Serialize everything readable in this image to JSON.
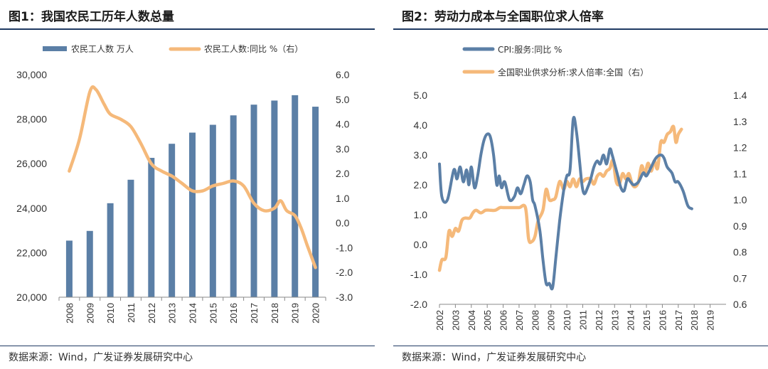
{
  "colors": {
    "bar": "#5b7fa6",
    "orange": "#f5b97a",
    "blue_line": "#5b7fa6",
    "rule": "#1f3a63"
  },
  "charts": [
    {
      "title": "图1：我国农民工历年人数总量",
      "source": "数据来源：Wind，广发证券发展研究中心"
    },
    {
      "title": "图2：劳动力成本与全国职位求人倍率",
      "source": "数据来源：Wind，广发证券发展研究中心"
    }
  ],
  "chart_data": [
    {
      "type": "bar+line",
      "title": "我国农民工历年人数总量",
      "categories": [
        "2008",
        "2009",
        "2010",
        "2011",
        "2012",
        "2013",
        "2014",
        "2015",
        "2016",
        "2017",
        "2018",
        "2019",
        "2020"
      ],
      "series": [
        {
          "name": "农民工人数 万人",
          "type": "bar",
          "axis": "left",
          "values": [
            22542,
            22978,
            24223,
            25278,
            26261,
            26894,
            27395,
            27747,
            28171,
            28652,
            28836,
            29077,
            28560
          ]
        },
        {
          "name": "农民工人数:同比 %（右）",
          "type": "line",
          "axis": "right",
          "points": [
            [
              0.0,
              2.1
            ],
            [
              0.5,
              3.4
            ],
            [
              1.0,
              5.3
            ],
            [
              1.3,
              5.4
            ],
            [
              1.7,
              4.8
            ],
            [
              2.0,
              4.4
            ],
            [
              2.5,
              4.2
            ],
            [
              3.0,
              3.9
            ],
            [
              3.5,
              3.2
            ],
            [
              4.0,
              2.4
            ],
            [
              4.5,
              2.1
            ],
            [
              5.0,
              1.9
            ],
            [
              5.5,
              1.6
            ],
            [
              6.0,
              1.3
            ],
            [
              6.5,
              1.3
            ],
            [
              7.0,
              1.5
            ],
            [
              7.5,
              1.6
            ],
            [
              8.0,
              1.7
            ],
            [
              8.5,
              1.5
            ],
            [
              9.0,
              0.8
            ],
            [
              9.5,
              0.5
            ],
            [
              10.0,
              0.6
            ],
            [
              10.3,
              0.9
            ],
            [
              10.6,
              0.5
            ],
            [
              11.0,
              0.3
            ],
            [
              11.3,
              -0.2
            ],
            [
              11.6,
              -0.9
            ],
            [
              12.0,
              -1.8
            ]
          ]
        }
      ],
      "left_axis": {
        "ylim": [
          20000,
          30000
        ],
        "ticks": [
          "20,000",
          "22,000",
          "24,000",
          "26,000",
          "28,000",
          "30,000"
        ]
      },
      "right_axis": {
        "ylim": [
          -3.0,
          6.0
        ],
        "ticks": [
          "-3.0",
          "-2.0",
          "-1.0",
          "0.0",
          "1.0",
          "2.0",
          "3.0",
          "4.0",
          "5.0",
          "6.0"
        ]
      },
      "legend": [
        "农民工人数 万人",
        "农民工人数:同比 %（右）"
      ]
    },
    {
      "type": "line",
      "title": "劳动力成本与全国职位求人倍率",
      "x_ticks": [
        "2002",
        "2003",
        "2004",
        "2005",
        "2006",
        "2007",
        "2008",
        "2009",
        "2010",
        "2011",
        "2012",
        "2013",
        "2014",
        "2015",
        "2016",
        "2017",
        "2018",
        "2019"
      ],
      "x_range": [
        2002,
        2020
      ],
      "series": [
        {
          "name": "CPI:服务:同比 %",
          "axis": "left",
          "points": [
            [
              2002.0,
              2.7
            ],
            [
              2002.15,
              1.6
            ],
            [
              2002.5,
              1.5
            ],
            [
              2002.9,
              2.5
            ],
            [
              2003.1,
              2.2
            ],
            [
              2003.3,
              2.6
            ],
            [
              2003.5,
              2.1
            ],
            [
              2003.7,
              2.5
            ],
            [
              2003.85,
              2.0
            ],
            [
              2004.0,
              2.6
            ],
            [
              2004.2,
              1.9
            ],
            [
              2004.4,
              2.3
            ],
            [
              2004.6,
              3.0
            ],
            [
              2004.8,
              3.5
            ],
            [
              2005.0,
              3.7
            ],
            [
              2005.2,
              3.6
            ],
            [
              2005.4,
              3.0
            ],
            [
              2005.6,
              2.0
            ],
            [
              2005.75,
              2.3
            ],
            [
              2005.9,
              1.9
            ],
            [
              2006.1,
              2.1
            ],
            [
              2006.4,
              1.5
            ],
            [
              2006.7,
              1.6
            ],
            [
              2006.9,
              1.9
            ],
            [
              2007.1,
              1.7
            ],
            [
              2007.3,
              2.0
            ],
            [
              2007.5,
              2.3
            ],
            [
              2007.7,
              2.1
            ],
            [
              2007.85,
              1.5
            ],
            [
              2008.0,
              1.3
            ],
            [
              2008.3,
              0.5
            ],
            [
              2008.5,
              -0.5
            ],
            [
              2008.7,
              -1.3
            ],
            [
              2008.9,
              -1.3
            ],
            [
              2009.1,
              -1.45
            ],
            [
              2009.3,
              -0.5
            ],
            [
              2009.55,
              0.8
            ],
            [
              2009.8,
              1.8
            ],
            [
              2010.0,
              2.3
            ],
            [
              2010.2,
              2.5
            ],
            [
              2010.4,
              4.2
            ],
            [
              2010.6,
              3.8
            ],
            [
              2010.8,
              2.8
            ],
            [
              2010.95,
              2.0
            ],
            [
              2011.1,
              1.7
            ],
            [
              2011.3,
              1.9
            ],
            [
              2011.5,
              2.2
            ],
            [
              2011.7,
              2.6
            ],
            [
              2011.9,
              2.8
            ],
            [
              2012.1,
              2.7
            ],
            [
              2012.3,
              3.0
            ],
            [
              2012.5,
              2.7
            ],
            [
              2012.7,
              3.2
            ],
            [
              2012.85,
              3.0
            ],
            [
              2013.0,
              2.7
            ],
            [
              2013.2,
              2.3
            ],
            [
              2013.4,
              1.9
            ],
            [
              2013.6,
              1.8
            ],
            [
              2013.8,
              2.2
            ],
            [
              2014.0,
              2.1
            ],
            [
              2014.2,
              2.0
            ],
            [
              2014.5,
              2.1
            ],
            [
              2014.8,
              2.4
            ],
            [
              2015.0,
              2.3
            ],
            [
              2015.3,
              2.6
            ],
            [
              2015.6,
              2.9
            ],
            [
              2015.9,
              3.0
            ],
            [
              2016.1,
              2.9
            ],
            [
              2016.3,
              2.6
            ],
            [
              2016.6,
              2.4
            ],
            [
              2016.8,
              2.1
            ],
            [
              2017.0,
              2.1
            ],
            [
              2017.3,
              1.8
            ],
            [
              2017.6,
              1.3
            ],
            [
              2017.85,
              1.2
            ]
          ]
        },
        {
          "name": "全国职业供求分析:求人倍率:全国（右）",
          "axis": "right",
          "points": [
            [
              2002.0,
              0.73
            ],
            [
              2002.15,
              0.77
            ],
            [
              2002.4,
              0.78
            ],
            [
              2002.6,
              0.88
            ],
            [
              2002.8,
              0.86
            ],
            [
              2003.0,
              0.89
            ],
            [
              2003.2,
              0.88
            ],
            [
              2003.4,
              0.92
            ],
            [
              2003.6,
              0.93
            ],
            [
              2003.9,
              0.93
            ],
            [
              2004.1,
              0.95
            ],
            [
              2004.3,
              0.96
            ],
            [
              2004.6,
              0.95
            ],
            [
              2004.9,
              0.96
            ],
            [
              2005.2,
              0.96
            ],
            [
              2005.5,
              0.96
            ],
            [
              2005.8,
              0.97
            ],
            [
              2006.0,
              0.97
            ],
            [
              2006.5,
              0.97
            ],
            [
              2007.0,
              0.97
            ],
            [
              2007.4,
              0.97
            ],
            [
              2007.6,
              0.85
            ],
            [
              2007.8,
              0.84
            ],
            [
              2008.0,
              0.86
            ],
            [
              2008.2,
              0.92
            ],
            [
              2008.5,
              0.96
            ],
            [
              2008.7,
              1.04
            ],
            [
              2008.9,
              1.0
            ],
            [
              2009.1,
              1.0
            ],
            [
              2009.3,
              1.01
            ],
            [
              2009.55,
              1.07
            ],
            [
              2009.8,
              1.04
            ],
            [
              2010.0,
              1.07
            ],
            [
              2010.2,
              1.05
            ],
            [
              2010.4,
              1.08
            ],
            [
              2010.6,
              1.05
            ],
            [
              2010.8,
              1.08
            ],
            [
              2011.0,
              1.07
            ],
            [
              2011.2,
              1.08
            ],
            [
              2011.5,
              1.08
            ],
            [
              2011.7,
              1.06
            ],
            [
              2011.9,
              1.09
            ],
            [
              2012.1,
              1.1
            ],
            [
              2012.3,
              1.09
            ],
            [
              2012.5,
              1.11
            ],
            [
              2012.7,
              1.12
            ],
            [
              2012.9,
              1.15
            ],
            [
              2013.1,
              1.07
            ],
            [
              2013.3,
              1.06
            ],
            [
              2013.5,
              1.1
            ],
            [
              2013.7,
              1.08
            ],
            [
              2013.9,
              1.1
            ],
            [
              2014.1,
              1.06
            ],
            [
              2014.3,
              1.05
            ],
            [
              2014.5,
              1.07
            ],
            [
              2014.7,
              1.13
            ],
            [
              2014.9,
              1.1
            ],
            [
              2015.1,
              1.14
            ],
            [
              2015.3,
              1.11
            ],
            [
              2015.5,
              1.15
            ],
            [
              2015.7,
              1.12
            ],
            [
              2015.9,
              1.22
            ],
            [
              2016.1,
              1.22
            ],
            [
              2016.3,
              1.25
            ],
            [
              2016.5,
              1.26
            ],
            [
              2016.7,
              1.28
            ],
            [
              2016.85,
              1.22
            ],
            [
              2017.0,
              1.25
            ],
            [
              2017.2,
              1.27
            ]
          ]
        }
      ],
      "left_axis": {
        "ylim": [
          -2.0,
          5.0
        ],
        "ticks": [
          "-2.0",
          "-1.0",
          "0.0",
          "1.0",
          "2.0",
          "3.0",
          "4.0",
          "5.0"
        ]
      },
      "right_axis": {
        "ylim": [
          0.6,
          1.4
        ],
        "ticks": [
          "0.6",
          "0.7",
          "0.8",
          "0.9",
          "1.0",
          "1.1",
          "1.2",
          "1.3",
          "1.4"
        ]
      },
      "legend": [
        "CPI:服务:同比 %",
        "全国职业供求分析:求人倍率:全国（右）"
      ]
    }
  ]
}
